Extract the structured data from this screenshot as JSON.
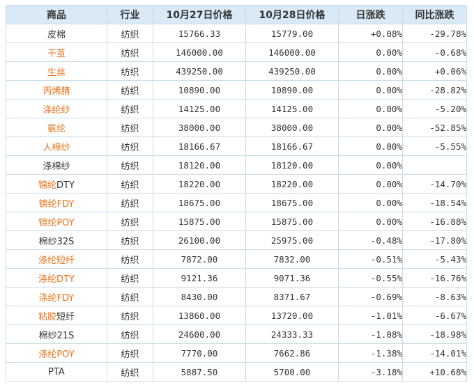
{
  "colors": {
    "link": "#e8731c",
    "up": "#e0000f",
    "down": "#1a8d1a",
    "header_bg": "#d9e9f6",
    "border": "#c8dbe9"
  },
  "headers": [
    "商品",
    "行业",
    "10月27日价格",
    "10月28日价格",
    "日涨跌",
    "同比涨跌"
  ],
  "rows": [
    {
      "name": [
        {
          "t": "皮棉",
          "link": false
        }
      ],
      "industry": "纺织",
      "p1": "15766.33",
      "p2": "15779.00",
      "day": "+0.08%",
      "day_dir": "up",
      "yoy": "-29.78%",
      "yoy_dir": "down"
    },
    {
      "name": [
        {
          "t": "干茧",
          "link": true
        }
      ],
      "industry": "纺织",
      "p1": "146000.00",
      "p2": "146000.00",
      "day": "0.00%",
      "day_dir": "flat",
      "yoy": "-0.68%",
      "yoy_dir": "down"
    },
    {
      "name": [
        {
          "t": "生丝",
          "link": true
        }
      ],
      "industry": "纺织",
      "p1": "439250.00",
      "p2": "439250.00",
      "day": "0.00%",
      "day_dir": "flat",
      "yoy": "+0.06%",
      "yoy_dir": "up"
    },
    {
      "name": [
        {
          "t": "丙烯腈",
          "link": true
        }
      ],
      "industry": "纺织",
      "p1": "10890.00",
      "p2": "10890.00",
      "day": "0.00%",
      "day_dir": "flat",
      "yoy": "-28.82%",
      "yoy_dir": "down"
    },
    {
      "name": [
        {
          "t": "涤纶纱",
          "link": true
        }
      ],
      "industry": "纺织",
      "p1": "14125.00",
      "p2": "14125.00",
      "day": "0.00%",
      "day_dir": "flat",
      "yoy": "-5.20%",
      "yoy_dir": "down"
    },
    {
      "name": [
        {
          "t": "氨纶",
          "link": true
        }
      ],
      "industry": "纺织",
      "p1": "38000.00",
      "p2": "38000.00",
      "day": "0.00%",
      "day_dir": "flat",
      "yoy": "-52.85%",
      "yoy_dir": "down"
    },
    {
      "name": [
        {
          "t": "人棉纱",
          "link": true
        }
      ],
      "industry": "纺织",
      "p1": "18166.67",
      "p2": "18166.67",
      "day": "0.00%",
      "day_dir": "flat",
      "yoy": "-5.55%",
      "yoy_dir": "down"
    },
    {
      "name": [
        {
          "t": "涤棉纱",
          "link": false
        }
      ],
      "industry": "纺织",
      "p1": "18120.00",
      "p2": "18120.00",
      "day": "0.00%",
      "day_dir": "flat",
      "yoy": "",
      "yoy_dir": "flat"
    },
    {
      "name": [
        {
          "t": "锦纶",
          "link": true
        },
        {
          "t": "DTY",
          "link": false
        }
      ],
      "industry": "纺织",
      "p1": "18220.00",
      "p2": "18220.00",
      "day": "0.00%",
      "day_dir": "flat",
      "yoy": "-14.70%",
      "yoy_dir": "down"
    },
    {
      "name": [
        {
          "t": "锦纶FDY",
          "link": true
        }
      ],
      "industry": "纺织",
      "p1": "18675.00",
      "p2": "18675.00",
      "day": "0.00%",
      "day_dir": "flat",
      "yoy": "-18.54%",
      "yoy_dir": "down"
    },
    {
      "name": [
        {
          "t": "锦纶POY",
          "link": true
        }
      ],
      "industry": "纺织",
      "p1": "15875.00",
      "p2": "15875.00",
      "day": "0.00%",
      "day_dir": "flat",
      "yoy": "-16.88%",
      "yoy_dir": "down"
    },
    {
      "name": [
        {
          "t": "棉纱32S",
          "link": false
        }
      ],
      "industry": "纺织",
      "p1": "26100.00",
      "p2": "25975.00",
      "day": "-0.48%",
      "day_dir": "down",
      "yoy": "-17.80%",
      "yoy_dir": "down"
    },
    {
      "name": [
        {
          "t": "涤纶短纤",
          "link": true
        }
      ],
      "industry": "纺织",
      "p1": "7872.00",
      "p2": "7832.00",
      "day": "-0.51%",
      "day_dir": "down",
      "yoy": "-5.43%",
      "yoy_dir": "down"
    },
    {
      "name": [
        {
          "t": "涤纶DTY",
          "link": true
        }
      ],
      "industry": "纺织",
      "p1": "9121.36",
      "p2": "9071.36",
      "day": "-0.55%",
      "day_dir": "down",
      "yoy": "-16.76%",
      "yoy_dir": "down"
    },
    {
      "name": [
        {
          "t": "涤纶FDY",
          "link": true
        }
      ],
      "industry": "纺织",
      "p1": "8430.00",
      "p2": "8371.67",
      "day": "-0.69%",
      "day_dir": "down",
      "yoy": "-8.63%",
      "yoy_dir": "down"
    },
    {
      "name": [
        {
          "t": "粘胶",
          "link": true
        },
        {
          "t": "短纤",
          "link": false
        }
      ],
      "industry": "纺织",
      "p1": "13860.00",
      "p2": "13720.00",
      "day": "-1.01%",
      "day_dir": "down",
      "yoy": "-6.67%",
      "yoy_dir": "down"
    },
    {
      "name": [
        {
          "t": "棉纱21S",
          "link": false
        }
      ],
      "industry": "纺织",
      "p1": "24600.00",
      "p2": "24333.33",
      "day": "-1.08%",
      "day_dir": "down",
      "yoy": "-18.98%",
      "yoy_dir": "down"
    },
    {
      "name": [
        {
          "t": "涤纶POY",
          "link": true
        }
      ],
      "industry": "纺织",
      "p1": "7770.00",
      "p2": "7662.86",
      "day": "-1.38%",
      "day_dir": "down",
      "yoy": "-14.01%",
      "yoy_dir": "down"
    },
    {
      "name": [
        {
          "t": "PTA",
          "link": false
        }
      ],
      "industry": "纺织",
      "p1": "5887.50",
      "p2": "5700.00",
      "day": "-3.18%",
      "day_dir": "down",
      "yoy": "+10.68%",
      "yoy_dir": "up"
    }
  ]
}
